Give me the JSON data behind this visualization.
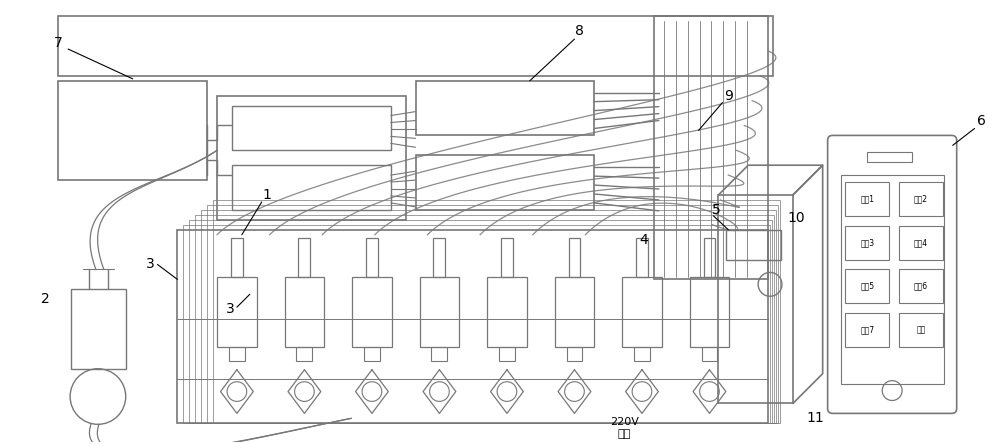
{
  "bg_color": "#ffffff",
  "lc": "#777777",
  "lc2": "#555555",
  "fig_width": 10.0,
  "fig_height": 4.44,
  "phone_buttons": [
    [
      "试剂1",
      "试剂2"
    ],
    [
      "试剂3",
      "试剂4"
    ],
    [
      "试剂5",
      "试剂6"
    ],
    [
      "试剂7",
      "废液"
    ]
  ],
  "power_label": "220V\n电源"
}
